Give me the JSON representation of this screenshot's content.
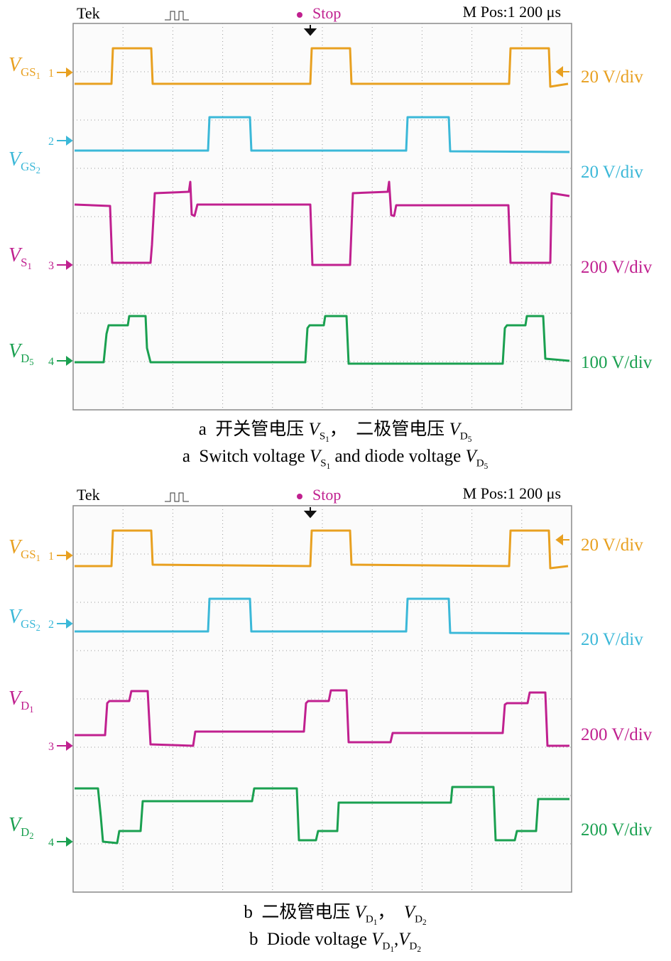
{
  "panels": [
    {
      "header": {
        "brand": "Tek",
        "status": "Stop",
        "time": "M Pos:1 200 μs"
      },
      "channels": [
        {
          "name": {
            "v": "V",
            "sub": "GS",
            "subsub": "1"
          },
          "marker": "1",
          "scale": "20 V/div"
        },
        {
          "name": {
            "v": "V",
            "sub": "GS",
            "subsub": "2"
          },
          "marker": "2",
          "scale": "20 V/div"
        },
        {
          "name": {
            "v": "V",
            "sub": "S",
            "subsub": "1"
          },
          "marker": "3",
          "scale": "200 V/div"
        },
        {
          "name": {
            "v": "V",
            "sub": "D",
            "subsub": "5"
          },
          "marker": "4",
          "scale": "100 V/div"
        }
      ],
      "caption": {
        "zh": [
          {
            "t": "a  开关管电压 "
          },
          {
            "v": "V",
            "sub": "S",
            "subsub": "1"
          },
          {
            "t": "，  二极管电压 "
          },
          {
            "v": "V",
            "sub": "D",
            "subsub": "5"
          }
        ],
        "en": [
          {
            "t": "a  Switch voltage "
          },
          {
            "v": "V",
            "sub": "S",
            "subsub": "1"
          },
          {
            "t": " and diode voltage "
          },
          {
            "v": "V",
            "sub": "D",
            "subsub": "5"
          }
        ]
      }
    },
    {
      "header": {
        "brand": "Tek",
        "status": "Stop",
        "time": "M Pos:1 200 μs"
      },
      "channels": [
        {
          "name": {
            "v": "V",
            "sub": "GS",
            "subsub": "1"
          },
          "marker": "1",
          "scale": "20 V/div"
        },
        {
          "name": {
            "v": "V",
            "sub": "GS",
            "subsub": "2"
          },
          "marker": "2",
          "scale": "20 V/div"
        },
        {
          "name": {
            "v": "V",
            "sub": "D",
            "subsub": "1"
          },
          "marker": "3",
          "scale": "200 V/div"
        },
        {
          "name": {
            "v": "V",
            "sub": "D",
            "subsub": "2"
          },
          "marker": "4",
          "scale": "200 V/div"
        }
      ],
      "caption": {
        "zh": [
          {
            "t": "b  二极管电压 "
          },
          {
            "v": "V",
            "sub": "D",
            "subsub": "1"
          },
          {
            "t": "，  "
          },
          {
            "v": "V",
            "sub": "D",
            "subsub": "2"
          }
        ],
        "en": [
          {
            "t": "b  Diode voltage "
          },
          {
            "v": "V",
            "sub": "D",
            "subsub": "1"
          },
          {
            "t": ","
          },
          {
            "v": "V",
            "sub": "D",
            "subsub": "2"
          }
        ]
      }
    }
  ]
}
